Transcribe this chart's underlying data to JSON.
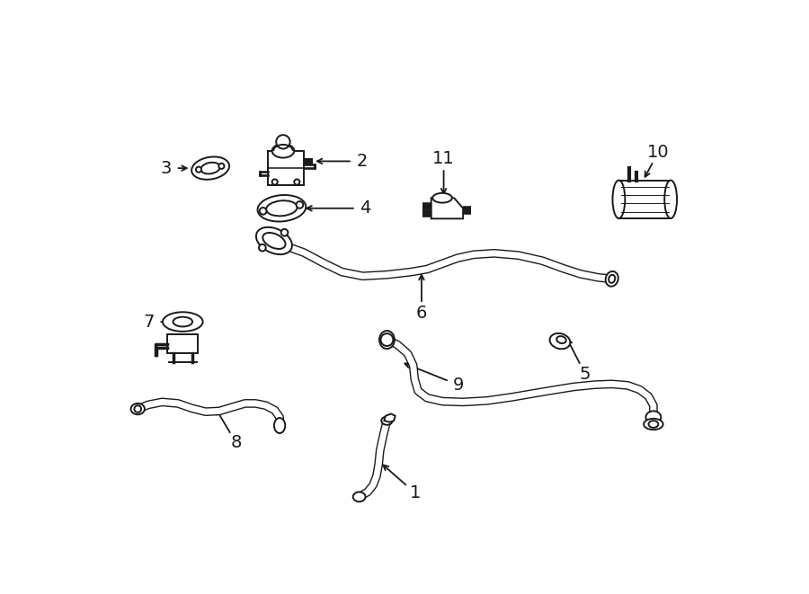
{
  "background_color": "#ffffff",
  "line_color": "#1a1a1a",
  "figsize": [
    9.0,
    6.61
  ],
  "dpi": 100,
  "lw_thick": 6.5,
  "lw_thin": 1.4,
  "lw_inner": 4.0
}
